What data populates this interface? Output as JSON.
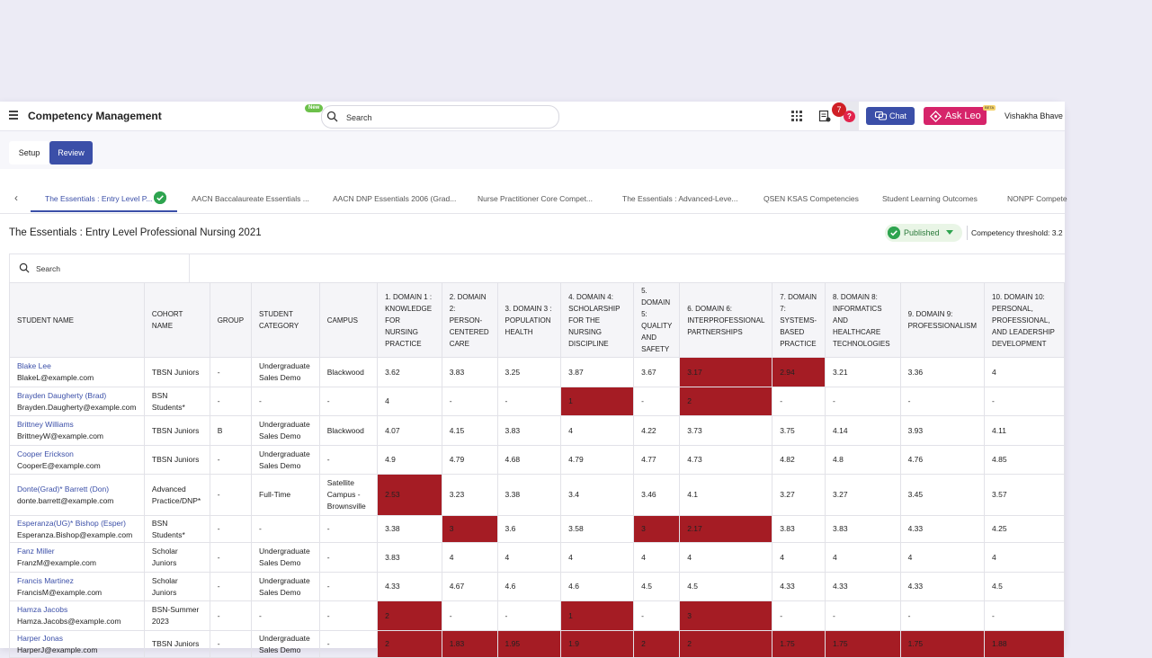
{
  "topbar": {
    "app_title": "Competency Management",
    "new_badge": "New",
    "search_placeholder": "Search",
    "notification_count": "7",
    "help_label": "?",
    "chat_label": "Chat",
    "askleo_label": "Ask Leo",
    "beta_badge": "BETA",
    "user_name": "Vishakha Bhave"
  },
  "modes": {
    "setup": "Setup",
    "review": "Review"
  },
  "framework_tabs": [
    "The Essentials : Entry Level P...",
    "AACN Baccalaureate Essentials ...",
    "AACN DNP Essentials 2006 (Grad...",
    "Nurse Practitioner Core Compet...",
    "The Essentials : Advanced-Leve...",
    "QSEN KSAS Competencies",
    "Student Learning Outcomes",
    "NONPF Compete"
  ],
  "header": {
    "title": "The Essentials : Entry Level Professional Nursing 2021",
    "status": "Published",
    "threshold": "Competency threshold: 3.2"
  },
  "table_search_placeholder": "Search",
  "columns": [
    "STUDENT NAME",
    "COHORT NAME",
    "GROUP",
    "STUDENT CATEGORY",
    "CAMPUS",
    "1. DOMAIN 1 : KNOWLEDGE FOR NURSING PRACTICE",
    "2. DOMAIN 2: PERSON-CENTERED CARE",
    "3. DOMAIN 3 : POPULATION HEALTH",
    "4. DOMAIN 4: SCHOLARSHIP FOR THE NURSING DISCIPLINE",
    "5. DOMAIN 5: QUALITY AND SAFETY",
    "6. DOMAIN 6: INTERPROFESSIONAL PARTNERSHIPS",
    "7. DOMAIN 7: SYSTEMS-BASED PRACTICE",
    "8. DOMAIN 8: INFORMATICS AND HEALTHCARE TECHNOLOGIES",
    "9. DOMAIN 9: PROFESSIONALISM",
    "10. DOMAIN 10: PERSONAL, PROFESSIONAL, AND LEADERSHIP DEVELOPMENT"
  ],
  "rows": [
    {
      "name": "Blake Lee",
      "email": "BlakeL@example.com",
      "cohort": "TBSN Juniors",
      "group": "-",
      "category": "Undergraduate Sales Demo",
      "campus": "Blackwood",
      "scores": [
        "3.62",
        "3.83",
        "3.25",
        "3.87",
        "3.67",
        "3.17",
        "2.94",
        "3.21",
        "3.36",
        "4"
      ],
      "low": [
        false,
        false,
        false,
        false,
        false,
        true,
        true,
        false,
        false,
        false
      ]
    },
    {
      "name": "Brayden Daugherty (Brad)",
      "email": "Brayden.Daugherty@example.com",
      "cohort": "BSN Students*",
      "group": "-",
      "category": "-",
      "campus": "-",
      "scores": [
        "4",
        "-",
        "-",
        "1",
        "-",
        "2",
        "-",
        "-",
        "-",
        "-"
      ],
      "low": [
        false,
        false,
        false,
        true,
        false,
        true,
        false,
        false,
        false,
        false
      ]
    },
    {
      "name": "Brittney Williams",
      "email": "BrittneyW@example.com",
      "cohort": "TBSN Juniors",
      "group": "B",
      "category": "Undergraduate Sales Demo",
      "campus": "Blackwood",
      "scores": [
        "4.07",
        "4.15",
        "3.83",
        "4",
        "4.22",
        "3.73",
        "3.75",
        "4.14",
        "3.93",
        "4.11"
      ],
      "low": [
        false,
        false,
        false,
        false,
        false,
        false,
        false,
        false,
        false,
        false
      ]
    },
    {
      "name": "Cooper Erickson",
      "email": "CooperE@example.com",
      "cohort": "TBSN Juniors",
      "group": "-",
      "category": "Undergraduate Sales Demo",
      "campus": "-",
      "scores": [
        "4.9",
        "4.79",
        "4.68",
        "4.79",
        "4.77",
        "4.73",
        "4.82",
        "4.8",
        "4.76",
        "4.85"
      ],
      "low": [
        false,
        false,
        false,
        false,
        false,
        false,
        false,
        false,
        false,
        false
      ]
    },
    {
      "name": "Donte(Grad)* Barrett (Don)",
      "email": "donte.barrett@example.com",
      "cohort": "Advanced Practice/DNP*",
      "group": "-",
      "category": "Full-Time",
      "campus": "Satellite Campus - Brownsville",
      "scores": [
        "2.53",
        "3.23",
        "3.38",
        "3.4",
        "3.46",
        "4.1",
        "3.27",
        "3.27",
        "3.45",
        "3.57"
      ],
      "low": [
        true,
        false,
        false,
        false,
        false,
        false,
        false,
        false,
        false,
        false
      ]
    },
    {
      "name": "Esperanza(UG)* Bishop (Esper)",
      "email": "Esperanza.Bishop@example.com",
      "cohort": "BSN Students*",
      "group": "-",
      "category": "-",
      "campus": "-",
      "scores": [
        "3.38",
        "3",
        "3.6",
        "3.58",
        "3",
        "2.17",
        "3.83",
        "3.83",
        "4.33",
        "4.25"
      ],
      "low": [
        false,
        true,
        false,
        false,
        true,
        true,
        false,
        false,
        false,
        false
      ]
    },
    {
      "name": "Fanz Miller",
      "email": "FranzM@example.com",
      "cohort": "Scholar Juniors",
      "group": "-",
      "category": "Undergraduate Sales Demo",
      "campus": "-",
      "scores": [
        "3.83",
        "4",
        "4",
        "4",
        "4",
        "4",
        "4",
        "4",
        "4",
        "4"
      ],
      "low": [
        false,
        false,
        false,
        false,
        false,
        false,
        false,
        false,
        false,
        false
      ]
    },
    {
      "name": "Francis Martinez",
      "email": "FrancisM@example.com",
      "cohort": "Scholar Juniors",
      "group": "-",
      "category": "Undergraduate Sales Demo",
      "campus": "-",
      "scores": [
        "4.33",
        "4.67",
        "4.6",
        "4.6",
        "4.5",
        "4.5",
        "4.33",
        "4.33",
        "4.33",
        "4.5"
      ],
      "low": [
        false,
        false,
        false,
        false,
        false,
        false,
        false,
        false,
        false,
        false
      ]
    },
    {
      "name": "Hamza Jacobs",
      "email": "Hamza.Jacobs@example.com",
      "cohort": "BSN-Summer 2023",
      "group": "-",
      "category": "-",
      "campus": "-",
      "scores": [
        "2",
        "-",
        "-",
        "1",
        "-",
        "3",
        "-",
        "-",
        "-",
        "-"
      ],
      "low": [
        true,
        false,
        false,
        true,
        false,
        true,
        false,
        false,
        false,
        false
      ]
    },
    {
      "name": "Harper Jonas",
      "email": "HarperJ@example.com",
      "cohort": "TBSN Juniors",
      "group": "-",
      "category": "Undergraduate Sales Demo",
      "campus": "-",
      "scores": [
        "2",
        "1.83",
        "1.95",
        "1.9",
        "2",
        "2",
        "1.75",
        "1.75",
        "1.75",
        "1.88"
      ],
      "low": [
        true,
        true,
        true,
        true,
        true,
        true,
        true,
        true,
        true,
        true
      ]
    }
  ]
}
